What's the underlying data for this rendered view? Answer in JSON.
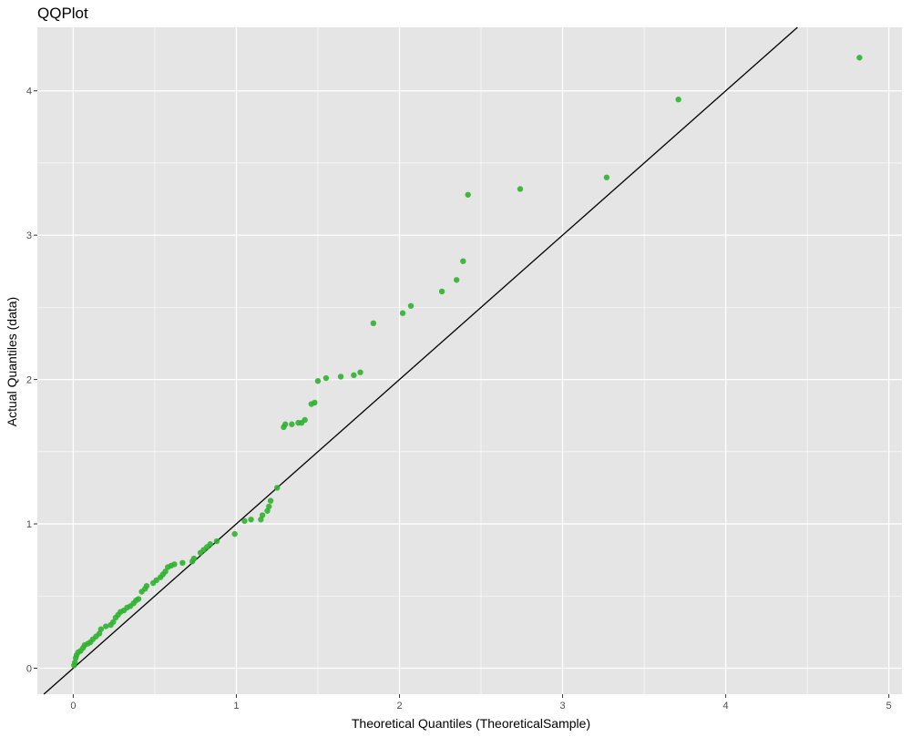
{
  "chart_data": {
    "type": "scatter",
    "title": "QQPlot",
    "xlabel": "Theoretical Quantiles (TheoreticalSample)",
    "ylabel": "Actual Quantiles (data)",
    "xlim": [
      -0.22,
      5.08
    ],
    "ylim": [
      -0.18,
      4.44
    ],
    "x_ticks": [
      0,
      1,
      2,
      3,
      4,
      5
    ],
    "y_ticks": [
      0,
      1,
      2,
      3,
      4
    ],
    "x_tick_labels": [
      "0",
      "1",
      "2",
      "3",
      "4",
      "5"
    ],
    "y_tick_labels": [
      "0",
      "1",
      "2",
      "3",
      "4"
    ],
    "grid": true,
    "reference_line": {
      "slope": 1,
      "intercept": 0
    },
    "colors": {
      "panel_background": "#e5e5e5",
      "grid": "#ffffff",
      "point": "#2db32d",
      "reference_line": "#000000"
    },
    "points": [
      [
        0.005,
        0.02
      ],
      [
        0.01,
        0.04
      ],
      [
        0.015,
        0.07
      ],
      [
        0.02,
        0.09
      ],
      [
        0.03,
        0.11
      ],
      [
        0.045,
        0.12
      ],
      [
        0.06,
        0.14
      ],
      [
        0.07,
        0.16
      ],
      [
        0.09,
        0.17
      ],
      [
        0.105,
        0.18
      ],
      [
        0.12,
        0.2
      ],
      [
        0.14,
        0.22
      ],
      [
        0.16,
        0.24
      ],
      [
        0.17,
        0.27
      ],
      [
        0.2,
        0.29
      ],
      [
        0.23,
        0.3
      ],
      [
        0.245,
        0.32
      ],
      [
        0.26,
        0.35
      ],
      [
        0.275,
        0.37
      ],
      [
        0.29,
        0.39
      ],
      [
        0.31,
        0.4
      ],
      [
        0.33,
        0.42
      ],
      [
        0.35,
        0.43
      ],
      [
        0.37,
        0.45
      ],
      [
        0.385,
        0.47
      ],
      [
        0.4,
        0.48
      ],
      [
        0.42,
        0.53
      ],
      [
        0.44,
        0.55
      ],
      [
        0.45,
        0.57
      ],
      [
        0.49,
        0.59
      ],
      [
        0.51,
        0.61
      ],
      [
        0.535,
        0.63
      ],
      [
        0.55,
        0.65
      ],
      [
        0.565,
        0.67
      ],
      [
        0.58,
        0.7
      ],
      [
        0.6,
        0.71
      ],
      [
        0.62,
        0.72
      ],
      [
        0.67,
        0.73
      ],
      [
        0.73,
        0.74
      ],
      [
        0.74,
        0.76
      ],
      [
        0.78,
        0.8
      ],
      [
        0.8,
        0.82
      ],
      [
        0.82,
        0.84
      ],
      [
        0.84,
        0.86
      ],
      [
        0.88,
        0.88
      ],
      [
        0.99,
        0.93
      ],
      [
        1.05,
        1.02
      ],
      [
        1.09,
        1.03
      ],
      [
        1.15,
        1.03
      ],
      [
        1.16,
        1.06
      ],
      [
        1.19,
        1.09
      ],
      [
        1.2,
        1.12
      ],
      [
        1.21,
        1.16
      ],
      [
        1.25,
        1.25
      ],
      [
        1.29,
        1.67
      ],
      [
        1.3,
        1.69
      ],
      [
        1.34,
        1.69
      ],
      [
        1.38,
        1.7
      ],
      [
        1.4,
        1.7
      ],
      [
        1.42,
        1.72
      ],
      [
        1.46,
        1.83
      ],
      [
        1.48,
        1.84
      ],
      [
        1.5,
        1.99
      ],
      [
        1.55,
        2.01
      ],
      [
        1.64,
        2.02
      ],
      [
        1.72,
        2.03
      ],
      [
        1.76,
        2.05
      ],
      [
        1.84,
        2.39
      ],
      [
        2.02,
        2.46
      ],
      [
        2.07,
        2.51
      ],
      [
        2.26,
        2.61
      ],
      [
        2.35,
        2.69
      ],
      [
        2.39,
        2.82
      ],
      [
        2.42,
        3.28
      ],
      [
        2.74,
        3.32
      ],
      [
        3.27,
        3.4
      ],
      [
        3.71,
        3.94
      ],
      [
        4.82,
        4.23
      ]
    ]
  }
}
